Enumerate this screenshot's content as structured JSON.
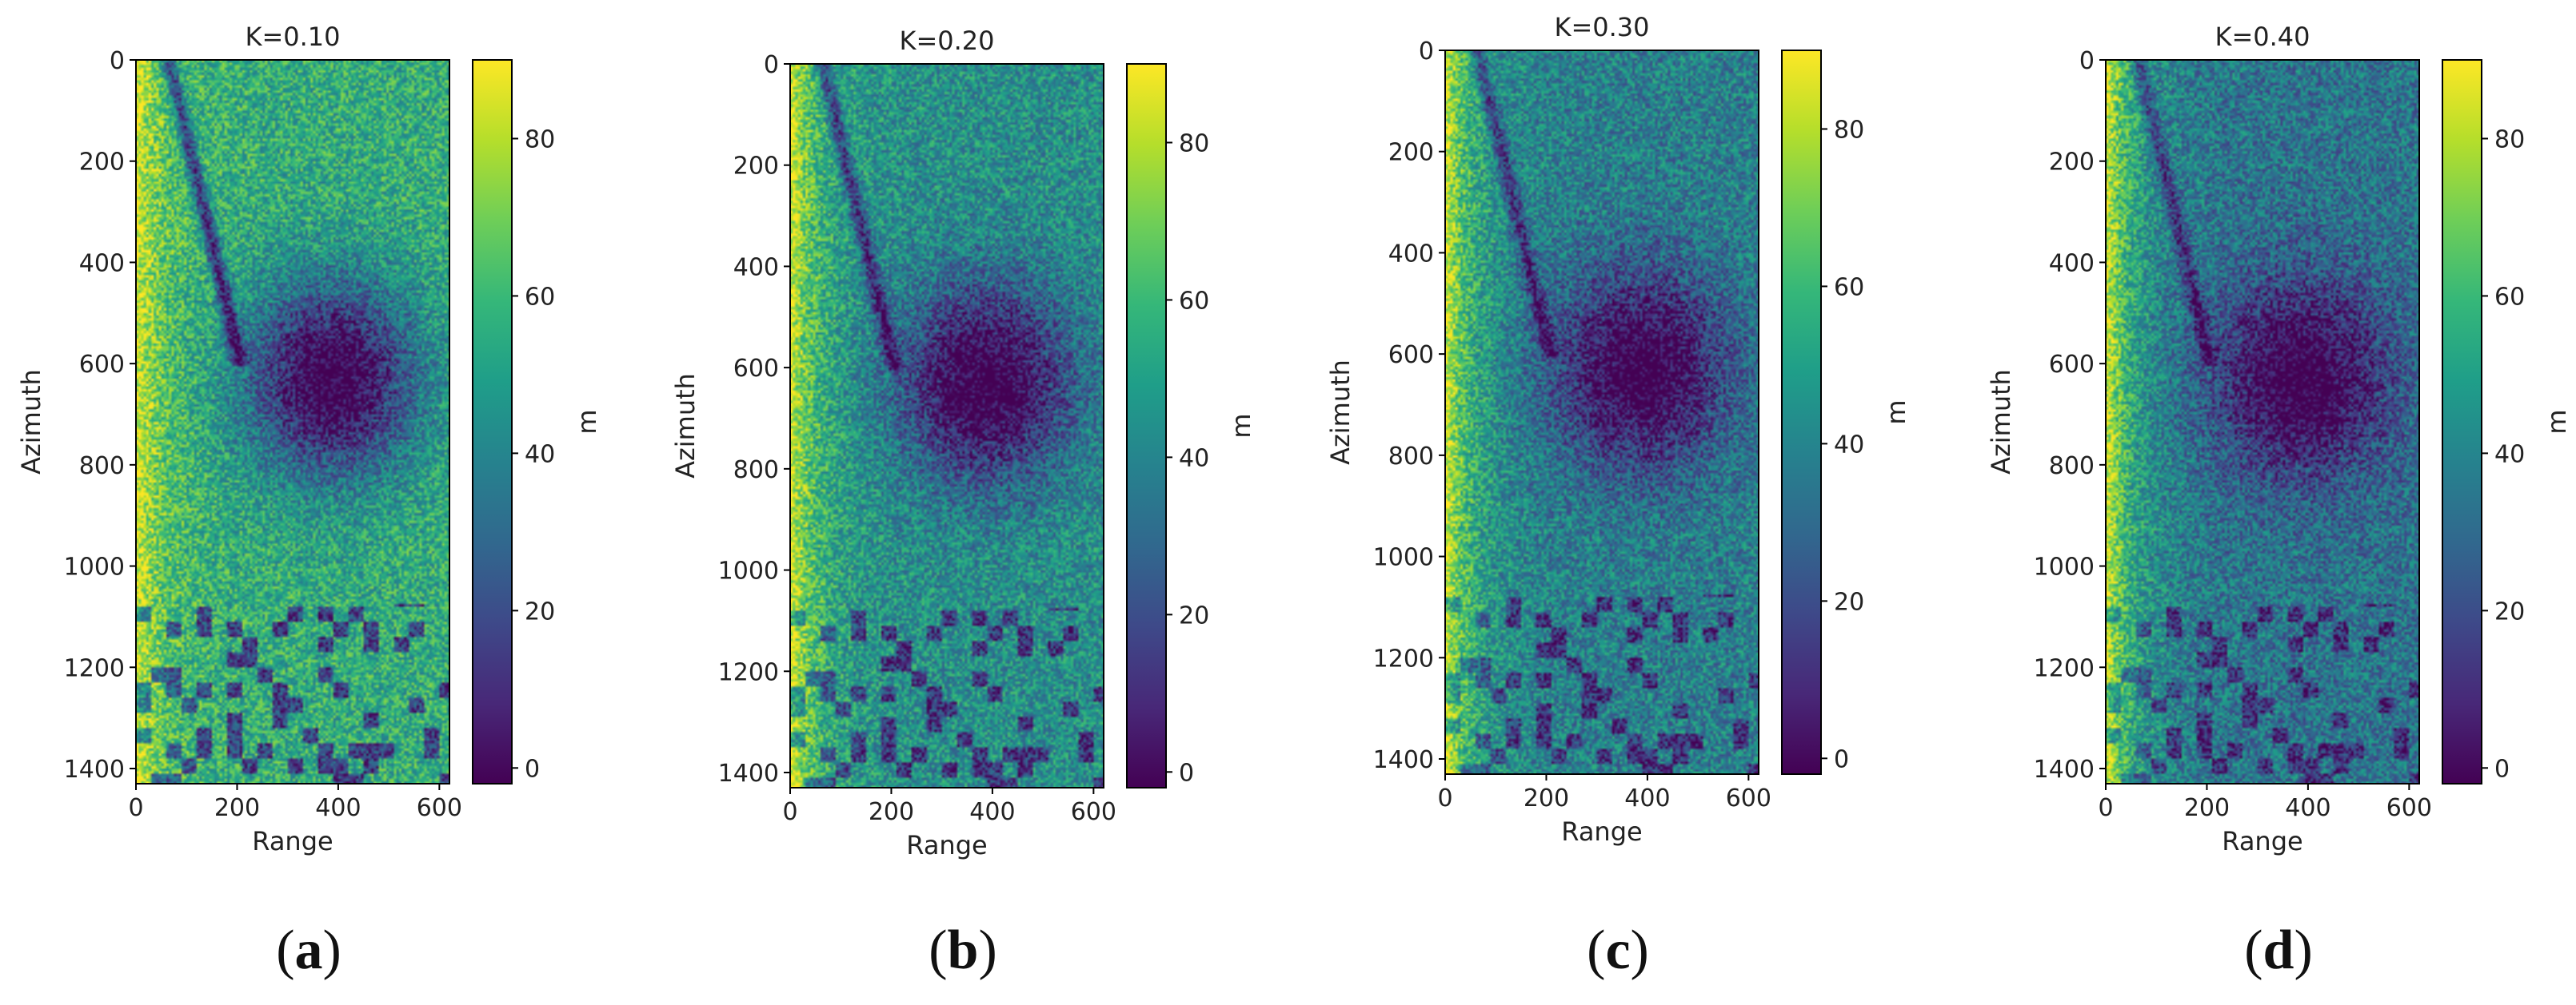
{
  "chart_data": [
    {
      "type": "heatmap",
      "title": "K=0.10",
      "xlabel": "Range",
      "ylabel": "Azimuth",
      "colorbar_label": "m",
      "xlim": [
        0,
        620
      ],
      "ylim": [
        1430,
        0
      ],
      "xticks": [
        0,
        200,
        400,
        600
      ],
      "yticks": [
        0,
        200,
        400,
        600,
        800,
        1000,
        1200,
        1400
      ],
      "clim": [
        -2,
        90
      ],
      "cbar_ticks": [
        0,
        20,
        40,
        60,
        80
      ],
      "mean_level": 55,
      "panel_caption": "(a)"
    },
    {
      "type": "heatmap",
      "title": "K=0.20",
      "xlabel": "Range",
      "ylabel": "Azimuth",
      "colorbar_label": "m",
      "xlim": [
        0,
        620
      ],
      "ylim": [
        1430,
        0
      ],
      "xticks": [
        0,
        200,
        400,
        600
      ],
      "yticks": [
        0,
        200,
        400,
        600,
        800,
        1000,
        1200,
        1400
      ],
      "clim": [
        -2,
        90
      ],
      "cbar_ticks": [
        0,
        20,
        40,
        60,
        80
      ],
      "mean_level": 44,
      "panel_caption": "(b)"
    },
    {
      "type": "heatmap",
      "title": "K=0.30",
      "xlabel": "Range",
      "ylabel": "Azimuth",
      "colorbar_label": "m",
      "xlim": [
        0,
        620
      ],
      "ylim": [
        1430,
        0
      ],
      "xticks": [
        0,
        200,
        400,
        600
      ],
      "yticks": [
        0,
        200,
        400,
        600,
        800,
        1000,
        1200,
        1400
      ],
      "clim": [
        -2,
        90
      ],
      "cbar_ticks": [
        0,
        20,
        40,
        60,
        80
      ],
      "mean_level": 38,
      "panel_caption": "(c)"
    },
    {
      "type": "heatmap",
      "title": "K=0.40",
      "xlabel": "Range",
      "ylabel": "Azimuth",
      "colorbar_label": "m",
      "xlim": [
        0,
        620
      ],
      "ylim": [
        1430,
        0
      ],
      "xticks": [
        0,
        200,
        400,
        600
      ],
      "yticks": [
        0,
        200,
        400,
        600,
        800,
        1000,
        1200,
        1400
      ],
      "clim": [
        -2,
        90
      ],
      "cbar_ticks": [
        0,
        20,
        40,
        60,
        80
      ],
      "mean_level": 34,
      "panel_caption": "(d)"
    }
  ],
  "colormap": {
    "name": "viridis",
    "stops": [
      "#440154",
      "#482878",
      "#3e4989",
      "#31688e",
      "#26828e",
      "#1f9e89",
      "#35b779",
      "#6ece58",
      "#b5de2b",
      "#fde725"
    ]
  }
}
